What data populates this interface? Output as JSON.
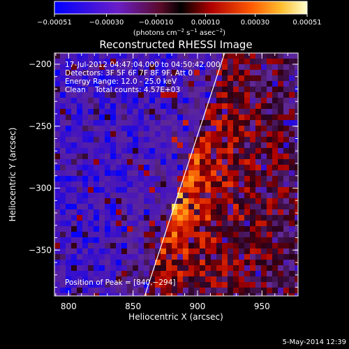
{
  "chart_data": {
    "type": "heatmap",
    "title": "Reconstructed RHESSI Image",
    "xlabel": "Heliocentric X (arcsec)",
    "ylabel": "Heliocentric Y (arcsec)",
    "xlim": [
      789,
      978
    ],
    "ylim": [
      -387,
      -191
    ],
    "x_ticks": [
      800,
      850,
      900,
      950
    ],
    "y_ticks": [
      -200,
      -250,
      -300,
      -350
    ],
    "x_tick_labels": [
      "800",
      "850",
      "900",
      "950"
    ],
    "y_tick_labels": [
      "−200",
      "−250",
      "−300",
      "−350"
    ],
    "colorbar": {
      "range": [
        -0.00051,
        0.00051
      ],
      "tick_labels": [
        "−0.00051",
        "−0.00030",
        "−0.00010",
        "0.00010",
        "0.00030",
        "0.00051"
      ],
      "tick_values": [
        -0.00051,
        -0.0003,
        -0.0001,
        0.0001,
        0.0003,
        0.00051
      ],
      "units_prefix": "(photons cm",
      "units_exp1": "−2",
      "units_mid1": " s",
      "units_exp2": "−1",
      "units_mid2": " asec",
      "units_exp3": "−2",
      "units_suffix": ")"
    },
    "annotations": [
      "17-Jul-2012 04:47:04.000 to 04:50:42.000",
      "Detectors: 3F 5F 6F 7F 8F 9F, Att 0",
      "Energy Range: 12.0 - 25.0 keV",
      "Clean    Total counts: 4.57E+03"
    ],
    "peak_label": "Position of Peak = [840,−294]",
    "peak": [
      840,
      -294
    ],
    "limb_line": [
      [
        859,
        -387
      ],
      [
        921,
        -191
      ]
    ]
  },
  "footer_date": "5-May-2014 12:39",
  "colors": {
    "background": "#000000",
    "axes": "#ffffff",
    "limb": "#ffffff"
  }
}
